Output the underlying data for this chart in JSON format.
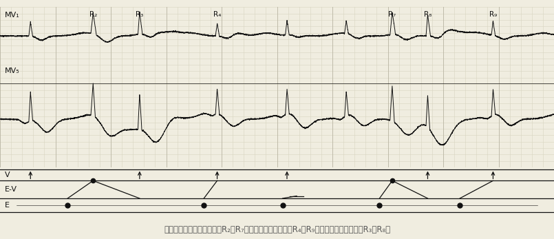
{
  "title": "并行性舒张晚期室性早搏（R₂、R₇）及加速的室性逸搏（R₄、R₉）伴折返性室性早搏（R₃、R₈）",
  "bg_color": "#f0ede0",
  "ecg_color": "#111111",
  "grid_minor_color": "#d8d4c0",
  "grid_major_color": "#bfbbaa",
  "label_MV1": "MV₁",
  "label_MV5": "MV₅",
  "label_V": "V",
  "label_EV": "E-V",
  "label_E": "E",
  "figsize": [
    8.05,
    3.47
  ],
  "dpi": 100,
  "r_pos": {
    "R1": 0.055,
    "R2": 0.168,
    "R3": 0.252,
    "R4": 0.392,
    "R5": 0.518,
    "R6": 0.625,
    "R7": 0.708,
    "R8": 0.772,
    "R9": 0.89
  },
  "caption_color": "#555555"
}
